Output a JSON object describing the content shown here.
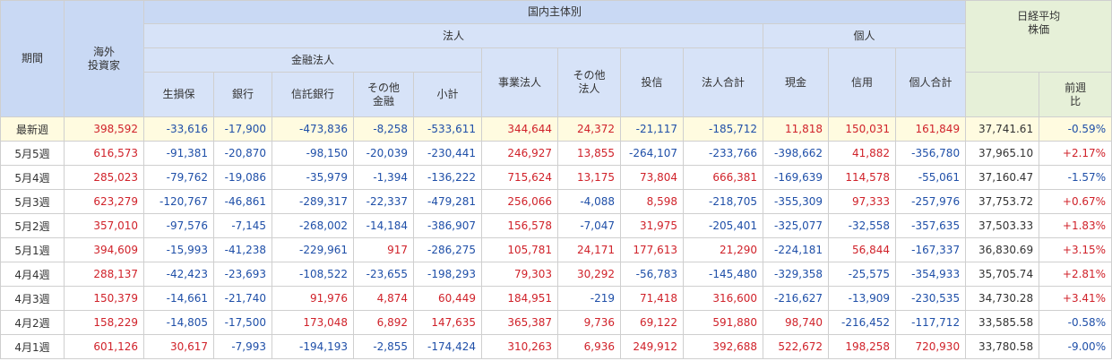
{
  "headers": {
    "period": "期間",
    "overseas_line1": "海外",
    "overseas_line2": "投資家",
    "domestic": "国内主体別",
    "corporate": "法人",
    "individual": "個人",
    "financial": "金融法人",
    "nikkei_line1": "日経平均",
    "nikkei_line2": "株価",
    "columns": {
      "insurance": "生損保",
      "bank": "銀行",
      "trust_bank": "信託銀行",
      "other_fin_line1": "その他",
      "other_fin_line2": "金融",
      "subtotal": "小計",
      "business": "事業法人",
      "other_corp_line1": "その他",
      "other_corp_line2": "法人",
      "inv_trust": "投信",
      "corp_total": "法人合計",
      "cash": "現金",
      "margin": "信用",
      "indiv_total": "個人合計",
      "change_line1": "前週",
      "change_line2": "比"
    }
  },
  "rows": [
    {
      "label": "最新週",
      "overseas": "398,592",
      "insurance": "-33,616",
      "bank": "-17,900",
      "trust": "-473,836",
      "other_fin": "-8,258",
      "subtotal": "-533,611",
      "business": "344,644",
      "other_corp": "24,372",
      "inv_trust": "-21,117",
      "corp_total": "-185,712",
      "cash": "11,818",
      "margin": "150,031",
      "indiv_total": "161,849",
      "nikkei": "37,741.61",
      "change": "-0.59%"
    },
    {
      "label": "5月5週",
      "overseas": "616,573",
      "insurance": "-91,381",
      "bank": "-20,870",
      "trust": "-98,150",
      "other_fin": "-20,039",
      "subtotal": "-230,441",
      "business": "246,927",
      "other_corp": "13,855",
      "inv_trust": "-264,107",
      "corp_total": "-233,766",
      "cash": "-398,662",
      "margin": "41,882",
      "indiv_total": "-356,780",
      "nikkei": "37,965.10",
      "change": "+2.17%"
    },
    {
      "label": "5月4週",
      "overseas": "285,023",
      "insurance": "-79,762",
      "bank": "-19,086",
      "trust": "-35,979",
      "other_fin": "-1,394",
      "subtotal": "-136,222",
      "business": "715,624",
      "other_corp": "13,175",
      "inv_trust": "73,804",
      "corp_total": "666,381",
      "cash": "-169,639",
      "margin": "114,578",
      "indiv_total": "-55,061",
      "nikkei": "37,160.47",
      "change": "-1.57%"
    },
    {
      "label": "5月3週",
      "overseas": "623,279",
      "insurance": "-120,767",
      "bank": "-46,861",
      "trust": "-289,317",
      "other_fin": "-22,337",
      "subtotal": "-479,281",
      "business": "256,066",
      "other_corp": "-4,088",
      "inv_trust": "8,598",
      "corp_total": "-218,705",
      "cash": "-355,309",
      "margin": "97,333",
      "indiv_total": "-257,976",
      "nikkei": "37,753.72",
      "change": "+0.67%"
    },
    {
      "label": "5月2週",
      "overseas": "357,010",
      "insurance": "-97,576",
      "bank": "-7,145",
      "trust": "-268,002",
      "other_fin": "-14,184",
      "subtotal": "-386,907",
      "business": "156,578",
      "other_corp": "-7,047",
      "inv_trust": "31,975",
      "corp_total": "-205,401",
      "cash": "-325,077",
      "margin": "-32,558",
      "indiv_total": "-357,635",
      "nikkei": "37,503.33",
      "change": "+1.83%"
    },
    {
      "label": "5月1週",
      "overseas": "394,609",
      "insurance": "-15,993",
      "bank": "-41,238",
      "trust": "-229,961",
      "other_fin": "917",
      "subtotal": "-286,275",
      "business": "105,781",
      "other_corp": "24,171",
      "inv_trust": "177,613",
      "corp_total": "21,290",
      "cash": "-224,181",
      "margin": "56,844",
      "indiv_total": "-167,337",
      "nikkei": "36,830.69",
      "change": "+3.15%"
    },
    {
      "label": "4月4週",
      "overseas": "288,137",
      "insurance": "-42,423",
      "bank": "-23,693",
      "trust": "-108,522",
      "other_fin": "-23,655",
      "subtotal": "-198,293",
      "business": "79,303",
      "other_corp": "30,292",
      "inv_trust": "-56,783",
      "corp_total": "-145,480",
      "cash": "-329,358",
      "margin": "-25,575",
      "indiv_total": "-354,933",
      "nikkei": "35,705.74",
      "change": "+2.81%"
    },
    {
      "label": "4月3週",
      "overseas": "150,379",
      "insurance": "-14,661",
      "bank": "-21,740",
      "trust": "91,976",
      "other_fin": "4,874",
      "subtotal": "60,449",
      "business": "184,951",
      "other_corp": "-219",
      "inv_trust": "71,418",
      "corp_total": "316,600",
      "cash": "-216,627",
      "margin": "-13,909",
      "indiv_total": "-230,535",
      "nikkei": "34,730.28",
      "change": "+3.41%"
    },
    {
      "label": "4月2週",
      "overseas": "158,229",
      "insurance": "-14,805",
      "bank": "-17,500",
      "trust": "173,048",
      "other_fin": "6,892",
      "subtotal": "147,635",
      "business": "365,387",
      "other_corp": "9,736",
      "inv_trust": "69,122",
      "corp_total": "591,880",
      "cash": "98,740",
      "margin": "-216,452",
      "indiv_total": "-117,712",
      "nikkei": "33,585.58",
      "change": "-0.58%"
    },
    {
      "label": "4月1週",
      "overseas": "601,126",
      "insurance": "30,617",
      "bank": "-7,993",
      "trust": "-194,193",
      "other_fin": "-2,855",
      "subtotal": "-174,424",
      "business": "310,263",
      "other_corp": "6,936",
      "inv_trust": "249,912",
      "corp_total": "392,688",
      "cash": "522,672",
      "margin": "198,258",
      "indiv_total": "720,930",
      "nikkei": "33,780.58",
      "change": "-9.00%"
    }
  ]
}
